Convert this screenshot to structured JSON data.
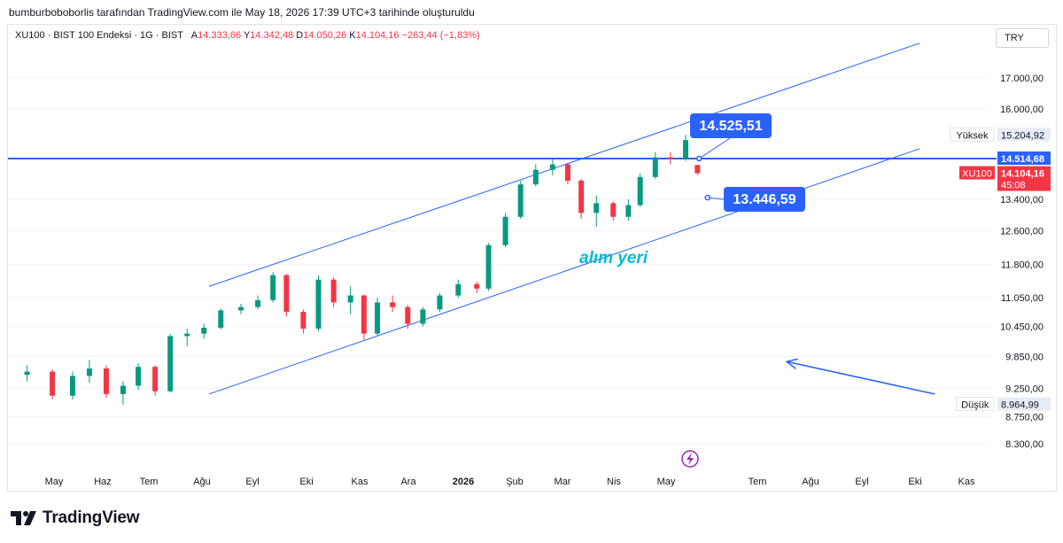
{
  "header": {
    "credit": "bumburboboborlis tarafından TradingView.com ile May 18, 2026 17:39 UTC+3 tarihinde oluşturuldu"
  },
  "legend": {
    "symbol_text": "XU100 · BIST 100 Endeksi · 1G · BIST",
    "open_label": "A",
    "open": "14.333,66",
    "high_label": "Y",
    "high": "14.342,48",
    "low_label": "D",
    "low": "14.050,26",
    "close_label": "K",
    "close": "14.104,16",
    "change": "−263,44 (−1,83%)"
  },
  "currency": "TRY",
  "footer": {
    "brand": "TradingView"
  },
  "colors": {
    "up": "#089981",
    "down": "#f23645",
    "channel": "#2962ff",
    "label_bg": "#2962ff",
    "annotation": "#00bcd4",
    "grid": "#f0f3fa"
  },
  "chart_data": {
    "type": "candlestick",
    "symbol": "XU100",
    "x_ticks": [
      "May",
      "Haz",
      "Tem",
      "Ağu",
      "Eyl",
      "Eki",
      "Kas",
      "Ara",
      "2026",
      "Şub",
      "Mar",
      "Nis",
      "May",
      "Tem",
      "Ağu",
      "Eyl",
      "Eki",
      "Kas"
    ],
    "y_ticks": [
      "8.300,00",
      "8.750,00",
      "9.250,00",
      "9.850,00",
      "10.450,00",
      "11.050,00",
      "11.800,00",
      "12.600,00",
      "13.400,00",
      "16.000,00",
      "17.000,00"
    ],
    "y_scale": "log",
    "ylim": [
      8000,
      18000
    ],
    "price_tags": [
      {
        "label": "Yüksek",
        "value": "15.204,92",
        "level": 15204.92,
        "style": "light"
      },
      {
        "label": "",
        "value": "14.514,68",
        "level": 14514.68,
        "style": "line"
      },
      {
        "label": "XU100",
        "value": "14.104,16",
        "sub": "45:08",
        "level": 14104.16,
        "style": "current"
      },
      {
        "label": "Düşük",
        "value": "8.964,99",
        "level": 8964.99,
        "style": "light"
      }
    ],
    "horizontal_line": 14514.68,
    "channel": {
      "upper": {
        "start": [
          "2025-08-01",
          11300
        ],
        "end": [
          "2026-09-27",
          18200
        ]
      },
      "lower": {
        "start": [
          "2025-08-01",
          9150
        ],
        "end": [
          "2026-09-27",
          14800
        ]
      }
    },
    "callouts": [
      {
        "text": "14.525,51",
        "anchor": [
          "2026-05-19",
          14514.68
        ]
      },
      {
        "text": "13.446,59",
        "anchor": [
          "2026-05-24",
          13446.59
        ]
      }
    ],
    "annotation_text": "alım yeri",
    "arrow": {
      "from": [
        "2026-10-06",
        9150
      ],
      "to": [
        "2026-07-10",
        9750
      ]
    },
    "series": [
      {
        "name": "XU100",
        "ohlc": [
          [
            "2025-04-15",
            9500,
            9680,
            9380,
            9560
          ],
          [
            "2025-04-30",
            9560,
            9600,
            9060,
            9120
          ],
          [
            "2025-05-12",
            9120,
            9560,
            9050,
            9480
          ],
          [
            "2025-05-22",
            9480,
            9780,
            9350,
            9620
          ],
          [
            "2025-06-01",
            9620,
            9680,
            9080,
            9150
          ],
          [
            "2025-06-11",
            9150,
            9380,
            8964.99,
            9300
          ],
          [
            "2025-06-20",
            9300,
            9720,
            9220,
            9650
          ],
          [
            "2025-06-30",
            9650,
            9680,
            9120,
            9200
          ],
          [
            "2025-07-09",
            9200,
            10300,
            9180,
            10250
          ],
          [
            "2025-07-19",
            10250,
            10400,
            10050,
            10300
          ],
          [
            "2025-07-29",
            10300,
            10500,
            10200,
            10420
          ],
          [
            "2025-08-08",
            10420,
            10820,
            10380,
            10780
          ],
          [
            "2025-08-20",
            10780,
            10920,
            10700,
            10850
          ],
          [
            "2025-08-30",
            10850,
            11100,
            10800,
            11000
          ],
          [
            "2025-09-08",
            11000,
            11620,
            10950,
            11550
          ],
          [
            "2025-09-16",
            11550,
            11580,
            10650,
            10750
          ],
          [
            "2025-09-26",
            10750,
            10800,
            10300,
            10400
          ],
          [
            "2025-10-05",
            10400,
            11550,
            10350,
            11450
          ],
          [
            "2025-10-14",
            11450,
            11500,
            10850,
            10950
          ],
          [
            "2025-10-24",
            10950,
            11300,
            10700,
            11100
          ],
          [
            "2025-11-01",
            11100,
            11120,
            10180,
            10300
          ],
          [
            "2025-11-09",
            10300,
            11050,
            10250,
            10950
          ],
          [
            "2025-11-18",
            10950,
            11100,
            10750,
            10850
          ],
          [
            "2025-11-27",
            10850,
            10900,
            10400,
            10500
          ],
          [
            "2025-12-06",
            10500,
            10850,
            10450,
            10800
          ],
          [
            "2025-12-16",
            10800,
            11150,
            10750,
            11100
          ],
          [
            "2025-12-27",
            11100,
            11450,
            11050,
            11350
          ],
          [
            "2026-01-07",
            11350,
            11400,
            11150,
            11250
          ],
          [
            "2026-01-14",
            11250,
            12300,
            11200,
            12250
          ],
          [
            "2026-01-24",
            12250,
            13050,
            12200,
            12950
          ],
          [
            "2026-02-02",
            12950,
            13900,
            12900,
            13800
          ],
          [
            "2026-02-11",
            13800,
            14350,
            13750,
            14200
          ],
          [
            "2026-02-21",
            14200,
            14550,
            14050,
            14350
          ],
          [
            "2026-03-02",
            14350,
            14400,
            13800,
            13900
          ],
          [
            "2026-03-10",
            13900,
            13950,
            12900,
            13050
          ],
          [
            "2026-03-19",
            13050,
            13500,
            12700,
            13300
          ],
          [
            "2026-03-29",
            13300,
            13350,
            12850,
            12950
          ],
          [
            "2026-04-07",
            12950,
            13400,
            12850,
            13250
          ],
          [
            "2026-04-14",
            13250,
            14100,
            13200,
            14000
          ],
          [
            "2026-04-23",
            14000,
            14700,
            13950,
            14550
          ],
          [
            "2026-05-02",
            14550,
            14700,
            14350,
            14500
          ],
          [
            "2026-05-11",
            14500,
            15204.92,
            14450,
            15050
          ],
          [
            "2026-05-18",
            14333.66,
            14342.48,
            14050.26,
            14104.16
          ]
        ]
      }
    ]
  }
}
